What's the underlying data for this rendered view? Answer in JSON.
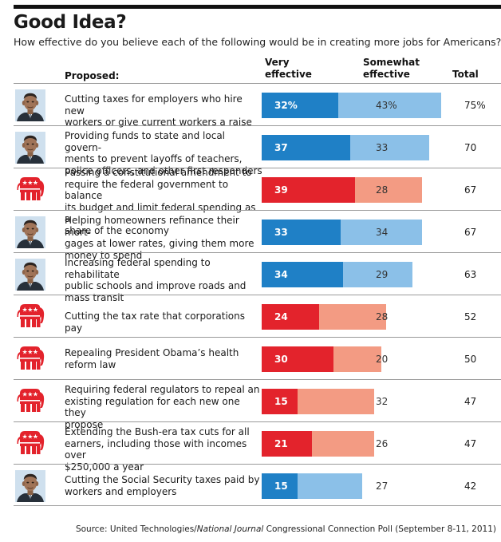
{
  "title": "Good Idea?",
  "subtitle": "How effective do you believe each of the following would be in creating more jobs for Americans?",
  "headers": {
    "proposed": "Proposed:",
    "very_line1": "Very",
    "very_line2": "effective",
    "somewhat_line1": "Somewhat",
    "somewhat_line2": "effective",
    "total": "Total"
  },
  "colors": {
    "dem_very": "#1f80c6",
    "dem_somewhat": "#8bc0e8",
    "rep_very": "#e3232c",
    "rep_somewhat": "#f39b83"
  },
  "chart_data": {
    "type": "bar",
    "stacked": true,
    "orientation": "horizontal",
    "title": "Good Idea?",
    "series_names": [
      "Very effective",
      "Somewhat effective"
    ],
    "rows": [
      {
        "icon": "obama-portrait-icon",
        "party": "dem",
        "label": [
          "Cutting taxes for employers who hire new",
          "workers or give current workers a raise"
        ],
        "very": 32,
        "somewhat": 43,
        "total": 75,
        "very_label": "32%",
        "somewhat_label": "43%",
        "total_label": "75%"
      },
      {
        "icon": "obama-portrait-icon",
        "party": "dem",
        "label": [
          "Providing funds to state and local govern-",
          "ments to prevent layoffs of teachers,",
          "police officers, and other first responders"
        ],
        "very": 37,
        "somewhat": 33,
        "total": 70,
        "very_label": "37",
        "somewhat_label": "33",
        "total_label": "70"
      },
      {
        "icon": "gop-elephant-icon",
        "party": "rep",
        "label": [
          "Passing a constitutional amendment to",
          "require the federal government to balance",
          "its budget and limit federal spending as a",
          "share of the economy"
        ],
        "very": 39,
        "somewhat": 28,
        "total": 67,
        "very_label": "39",
        "somewhat_label": "28",
        "total_label": "67"
      },
      {
        "icon": "obama-portrait-icon",
        "party": "dem",
        "label": [
          "Helping homeowners refinance their mort-",
          "gages at lower rates, giving them more",
          "money to spend"
        ],
        "very": 33,
        "somewhat": 34,
        "total": 67,
        "very_label": "33",
        "somewhat_label": "34",
        "total_label": "67"
      },
      {
        "icon": "obama-portrait-icon",
        "party": "dem",
        "label": [
          "Increasing federal spending to rehabilitate",
          "public schools and improve roads and",
          "mass transit"
        ],
        "very": 34,
        "somewhat": 29,
        "total": 63,
        "very_label": "34",
        "somewhat_label": "29",
        "total_label": "63"
      },
      {
        "icon": "gop-elephant-icon",
        "party": "rep",
        "label": [
          "Cutting the tax rate that corporations pay"
        ],
        "very": 24,
        "somewhat": 28,
        "total": 52,
        "very_label": "24",
        "somewhat_label": "28",
        "total_label": "52"
      },
      {
        "icon": "gop-elephant-icon",
        "party": "rep",
        "label": [
          "Repealing President Obama’s health",
          "reform law"
        ],
        "very": 30,
        "somewhat": 20,
        "total": 50,
        "very_label": "30",
        "somewhat_label": "20",
        "total_label": "50"
      },
      {
        "icon": "gop-elephant-icon",
        "party": "rep",
        "label": [
          "Requiring federal regulators to repeal an",
          "existing regulation for each new one they",
          "propose"
        ],
        "very": 15,
        "somewhat": 32,
        "total": 47,
        "very_label": "15",
        "somewhat_label": "32",
        "total_label": "47"
      },
      {
        "icon": "gop-elephant-icon",
        "party": "rep",
        "label": [
          "Extending the Bush-era tax cuts for all",
          "earners, including those with incomes over",
          "$250,000 a year"
        ],
        "very": 21,
        "somewhat": 26,
        "total": 47,
        "very_label": "21",
        "somewhat_label": "26",
        "total_label": "47"
      },
      {
        "icon": "obama-portrait-icon",
        "party": "dem",
        "label": [
          "Cutting the Social Security taxes paid by",
          "workers and employers"
        ],
        "very": 15,
        "somewhat": 27,
        "total": 42,
        "very_label": "15",
        "somewhat_label": "27",
        "total_label": "42"
      }
    ]
  },
  "source": {
    "prefix": "Source: United Technologies/",
    "italic": "National Journal",
    "suffix": " Congressional Connection Poll (September 8-11, 2011)"
  }
}
